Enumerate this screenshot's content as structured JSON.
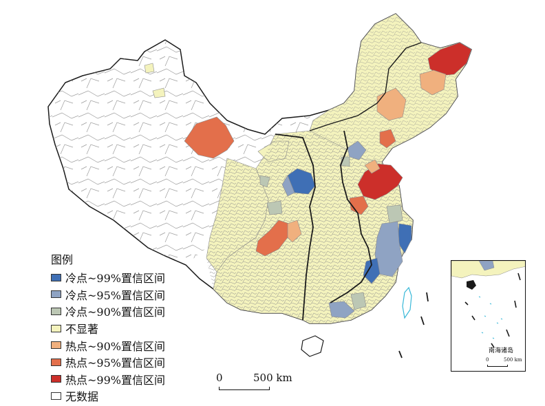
{
  "legend": {
    "title": "图例",
    "items": [
      {
        "label": "冷点~99%置信区间",
        "color": "#3f6fb5"
      },
      {
        "label": "冷点~95%置信区间",
        "color": "#8fa3c3"
      },
      {
        "label": "冷点~90%置信区间",
        "color": "#bcc7b4"
      },
      {
        "label": "不显著",
        "color": "#f4f3bd"
      },
      {
        "label": "热点~90%置信区间",
        "color": "#f0b07e"
      },
      {
        "label": "热点~95%置信区间",
        "color": "#e36f4b"
      },
      {
        "label": "热点~99%置信区间",
        "color": "#cc2f2a"
      },
      {
        "label": "无数据",
        "color": "#ffffff"
      }
    ]
  },
  "scalebar": {
    "zero": "0",
    "end": "500 km"
  },
  "inset": {
    "title": "南海诸岛",
    "scale_zero": "0",
    "scale_end": "500 km"
  },
  "colors": {
    "cold99": "#3f6fb5",
    "cold95": "#8fa3c3",
    "cold90": "#bcc7b4",
    "ns": "#f4f3bd",
    "hot90": "#f0b07e",
    "hot95": "#e36f4b",
    "hot99": "#cc2f2a",
    "nodata": "#ffffff",
    "border": "#8a8a8a",
    "outline": "#1a1a1a",
    "water": "#38b8d8"
  }
}
